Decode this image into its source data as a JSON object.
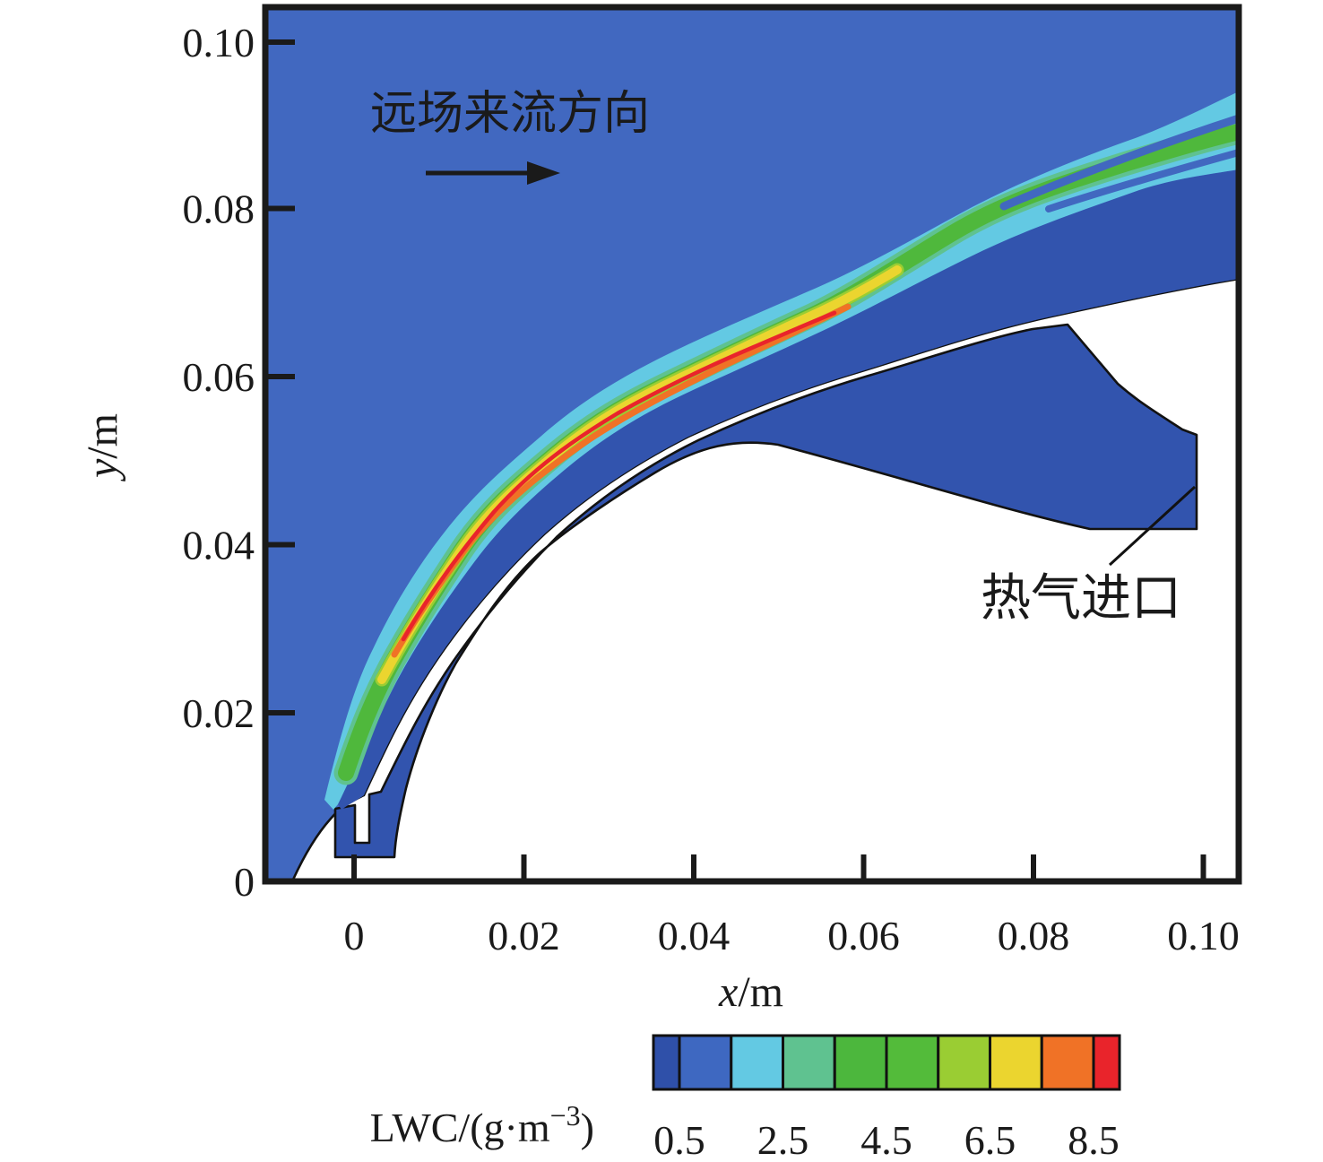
{
  "annotations": {
    "flow_direction": "远场来流方向",
    "hot_gas_inlet": "热气进口"
  },
  "axes": {
    "x": {
      "label_var": "x",
      "label_unit": "/m",
      "ticks": [
        "0",
        "0.02",
        "0.04",
        "0.06",
        "0.08",
        "0.10"
      ]
    },
    "y": {
      "label_var": "y",
      "label_unit": "/m",
      "ticks": [
        "0.10",
        "0.08",
        "0.06",
        "0.04",
        "0.02",
        "0"
      ]
    }
  },
  "colorbar": {
    "label_prefix": "LWC/(g·m",
    "label_sup": "−3",
    "label_suffix": ")",
    "tick_labels": [
      "0.5",
      "2.5",
      "4.5",
      "6.5",
      "8.5"
    ],
    "colors": [
      "#2F50A9",
      "#3E68C1",
      "#63C9E3",
      "#5FC290",
      "#4CB73D",
      "#53BB3A",
      "#9ACD33",
      "#EBD52F",
      "#F07226",
      "#E9242B"
    ]
  },
  "field_colors": {
    "background_lwc1": "#4168C0",
    "shadow_lwc0": "#3254AE",
    "band_cyan": "#63C9E3",
    "band_teal": "#5FC290",
    "band_green": "#4FB83C",
    "band_yellowgreen": "#9ACD33",
    "band_yellow": "#EBD52F",
    "band_orange": "#F07226",
    "band_red": "#E9242B"
  },
  "chart_data": {
    "type": "heatmap",
    "subtype": "cfd-contour-LWC-field",
    "xlabel": "x/m",
    "ylabel": "y/m",
    "x_range": [
      -0.0105,
      0.1042
    ],
    "y_range": [
      0,
      0.1035
    ],
    "x_ticks": [
      0,
      0.02,
      0.04,
      0.06,
      0.08,
      0.1
    ],
    "y_ticks": [
      0,
      0.02,
      0.04,
      0.06,
      0.08,
      0.1
    ],
    "colorbar_label": "LWC/(g·m−3)",
    "colorbar_tick_values": [
      0.5,
      2.5,
      4.5,
      6.5,
      8.5
    ],
    "colorbar_levels": [
      0,
      0.5,
      1.5,
      2.5,
      3.5,
      4.5,
      5.5,
      6.5,
      7.5,
      8.5,
      9
    ],
    "legend_position": "bottom",
    "grid": false,
    "regions": [
      {
        "name": "free_stream_background",
        "approx_lwc": 1.0
      },
      {
        "name": "droplet_enrichment_band_peak",
        "approx_lwc": 9.0
      },
      {
        "name": "shadow_zone_below_band",
        "approx_lwc": 0.3
      },
      {
        "name": "solid_airfoil_body",
        "approx_lwc": null
      },
      {
        "name": "hot_gas_inlet_cavity",
        "approx_lwc": 0.3
      }
    ],
    "enrichment_band_centerline_xy_m": [
      [
        -0.0024,
        0.0082
      ],
      [
        0.0037,
        0.0246
      ],
      [
        0.0123,
        0.0386
      ],
      [
        0.0235,
        0.0501
      ],
      [
        0.0373,
        0.0587
      ],
      [
        0.0533,
        0.0663
      ],
      [
        0.0702,
        0.0761
      ],
      [
        0.0902,
        0.0842
      ],
      [
        0.1037,
        0.0881
      ]
    ],
    "annotations": [
      {
        "text": "远场来流方向",
        "meaning": "far-field incoming flow direction",
        "arrow": true
      },
      {
        "text": "热气进口",
        "meaning": "hot gas inlet",
        "leader_line": true
      }
    ]
  }
}
